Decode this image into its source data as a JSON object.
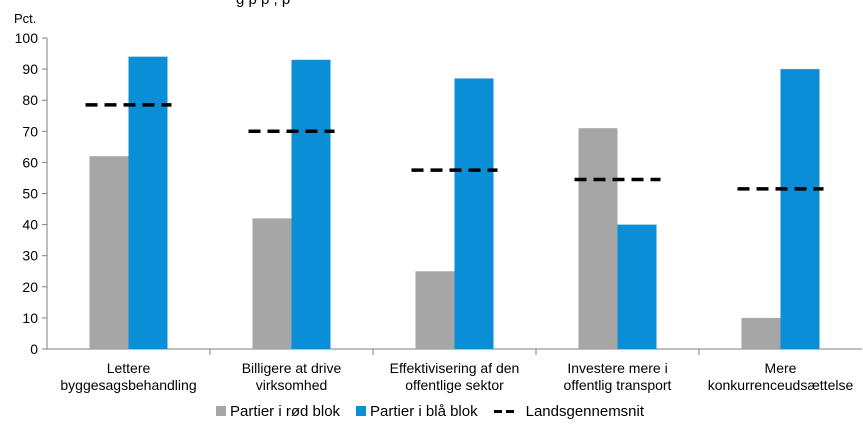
{
  "chart_data": {
    "type": "bar",
    "title": "",
    "subtitle_fragment": "g         p  p         ,  p",
    "unit_label": "Pct.",
    "ylim": [
      0,
      100
    ],
    "yticks": [
      0,
      10,
      20,
      30,
      40,
      50,
      60,
      70,
      80,
      90,
      100
    ],
    "grid": false,
    "categories": [
      [
        "Lettere",
        "byggesagsbehandling"
      ],
      [
        "Billigere at drive",
        "virksomhed"
      ],
      [
        "Effektivisering af den",
        "offentlige sektor"
      ],
      [
        "Investere mere i",
        "offentlig transport"
      ],
      [
        "Mere",
        "konkurrenceudsættelse"
      ]
    ],
    "series": [
      {
        "name": "Partier i rød blok",
        "type": "bar",
        "color": "#a6a6a6",
        "values": [
          62,
          42,
          25,
          71,
          10
        ]
      },
      {
        "name": "Partier i blå blok",
        "type": "bar",
        "color": "#0a8fd6",
        "values": [
          94,
          93,
          87,
          40,
          90
        ]
      },
      {
        "name": "Landsgennemsnit",
        "type": "dashed-line",
        "color": "#000000",
        "values": [
          78.5,
          70,
          57.5,
          54.5,
          51.5
        ]
      }
    ],
    "legend_position": "bottom"
  }
}
